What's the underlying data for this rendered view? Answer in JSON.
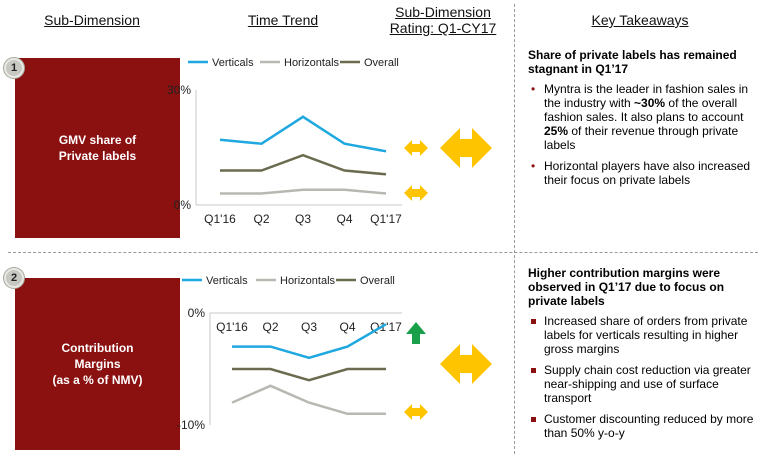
{
  "headers": {
    "sub_dimension": "Sub-Dimension",
    "time_trend": "Time Trend",
    "rating_line1": "Sub-Dimension",
    "rating_line2": "Rating: Q1-CY17",
    "key_takeaways": "Key Takeaways"
  },
  "sections": [
    {
      "number": "1",
      "label": "GMV share of\nPrivate labels",
      "takeaway_title": "Share of private labels has remained stagnant in Q1’17",
      "bullets": [
        {
          "pre": "Myntra is the leader in fashion sales in the industry with ",
          "b1": "~30%",
          "mid": " of the overall fashion sales. It also plans to account ",
          "b2": "25%",
          "post": " of their revenue through private labels"
        },
        {
          "pre": "Horizontal players have also increased their focus on private labels",
          "b1": "",
          "mid": "",
          "b2": "",
          "post": ""
        }
      ],
      "rating_icons": [
        "double-arrow-small",
        "double-arrow-large",
        "double-arrow-small"
      ]
    },
    {
      "number": "2",
      "label": "Contribution\nMargins\n(as a % of NMV)",
      "takeaway_title": "Higher contribution margins were observed in Q1’17 due to focus on private labels",
      "bullets": [
        {
          "pre": "Increased share of orders from private labels for verticals resulting in higher gross margins"
        },
        {
          "pre": "Supply chain cost reduction via greater near-shipping and use of surface transport"
        },
        {
          "pre": "Customer discounting reduced by more than 50% y-o-y"
        }
      ],
      "rating_icons": [
        "up-arrow",
        "double-arrow-large",
        "double-arrow-small"
      ]
    }
  ],
  "colors": {
    "verticals": "#1fa8e0",
    "horizontals": "#b8b8b2",
    "overall": "#6b6b4f",
    "accent": "#8b1111",
    "arrow_yellow": "#ffc400",
    "arrow_green": "#1aa04a"
  },
  "chart_data": [
    {
      "type": "line",
      "categories": [
        "Q1'16",
        "Q2",
        "Q3",
        "Q4",
        "Q1'17"
      ],
      "ylim": [
        0,
        30
      ],
      "ytick_labels": [
        "30%",
        "0%"
      ],
      "legend_position": "top",
      "series": [
        {
          "name": "Verticals",
          "values": [
            17,
            16,
            23,
            16,
            14
          ]
        },
        {
          "name": "Horizontals",
          "values": [
            3,
            3,
            4,
            4,
            3
          ]
        },
        {
          "name": "Overall",
          "values": [
            9,
            9,
            13,
            9,
            8
          ]
        }
      ]
    },
    {
      "type": "line",
      "categories": [
        "Q1'16",
        "Q2",
        "Q3",
        "Q4",
        "Q1'17"
      ],
      "ylim": [
        -10,
        0
      ],
      "ytick_labels": [
        "0%",
        "-10%"
      ],
      "legend_position": "top",
      "series": [
        {
          "name": "Verticals",
          "values": [
            -3,
            -3,
            -4,
            -3,
            -1
          ]
        },
        {
          "name": "Horizontals",
          "values": [
            -8,
            -6.5,
            -8,
            -9,
            -9
          ]
        },
        {
          "name": "Overall",
          "values": [
            -5,
            -5,
            -6,
            -5,
            -5
          ]
        }
      ]
    }
  ]
}
